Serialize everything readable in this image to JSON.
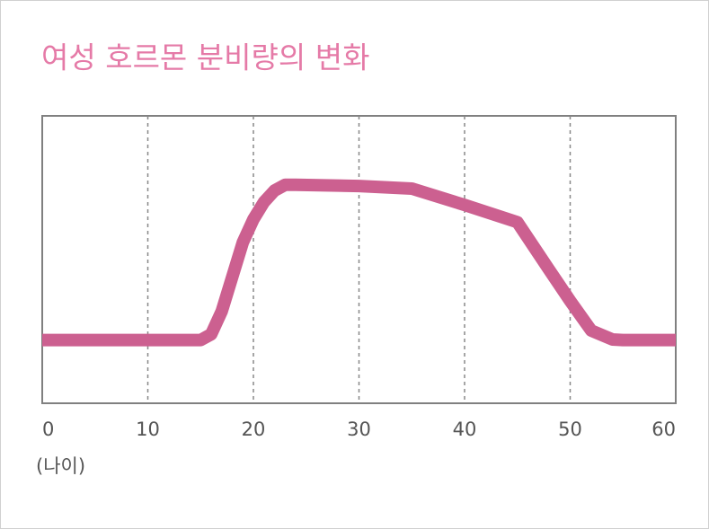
{
  "chart_data": {
    "type": "line",
    "title": "여성 호르몬 분비량의 변화",
    "x_label": "(나이)",
    "x": [
      0,
      15,
      16,
      17,
      18,
      19,
      20,
      21,
      22,
      23,
      24,
      30,
      35,
      40,
      45,
      48,
      50,
      52,
      54,
      55,
      60
    ],
    "series": [
      {
        "color": "#cc6090",
        "values": [
          22,
          22,
          24,
          32,
          44,
          56,
          64,
          70,
          74,
          76,
          76,
          75.6,
          74.7,
          69,
          63,
          46.5,
          35.6,
          25.3,
          22.2,
          22,
          22
        ]
      }
    ],
    "xlim": [
      0,
      60
    ],
    "xticks": [
      0,
      10,
      20,
      30,
      40,
      50,
      60
    ],
    "ylim": [
      0,
      100
    ],
    "grid": true
  }
}
